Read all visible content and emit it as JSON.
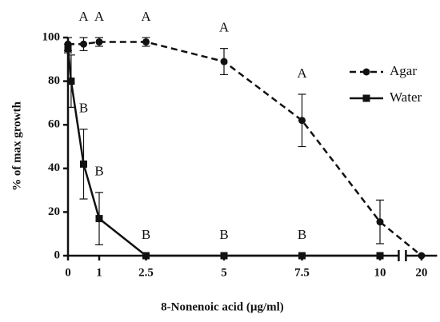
{
  "chart_data": {
    "type": "line",
    "xlabel": "8-Nonenoic acid (µg/ml)",
    "ylabel": "% of max growth",
    "xlim": [
      0,
      20.5
    ],
    "x_break": [
      10.6,
      19.5
    ],
    "xticks": [
      0,
      1,
      2.5,
      5,
      7.5,
      10,
      20
    ],
    "ylim": [
      0,
      100
    ],
    "yticks": [
      0,
      20,
      40,
      60,
      80,
      100
    ],
    "legend": "upper right",
    "series": [
      {
        "name": "Agar",
        "color": "#111111",
        "dash": true,
        "marker": "circle",
        "x": [
          0,
          0.5,
          1,
          2.5,
          5,
          7.5,
          10,
          20
        ],
        "values": [
          97,
          97,
          98,
          98,
          89,
          62,
          15.5,
          0
        ],
        "errors": [
          3,
          3,
          2,
          2,
          6,
          12,
          10,
          0
        ],
        "labels": [
          null,
          "A",
          "A",
          "A",
          "A",
          "A",
          null,
          null
        ]
      },
      {
        "name": "Water",
        "color": "#111111",
        "dash": false,
        "marker": "square",
        "x": [
          0,
          0.1,
          0.5,
          1,
          2.5,
          5,
          7.5,
          10
        ],
        "values": [
          95,
          80,
          42,
          17,
          0,
          0,
          0,
          0
        ],
        "errors": [
          2,
          12,
          16,
          12,
          0,
          0,
          0,
          0
        ],
        "labels": [
          null,
          null,
          "B",
          "B",
          "B",
          "B",
          "B",
          null
        ]
      }
    ]
  }
}
